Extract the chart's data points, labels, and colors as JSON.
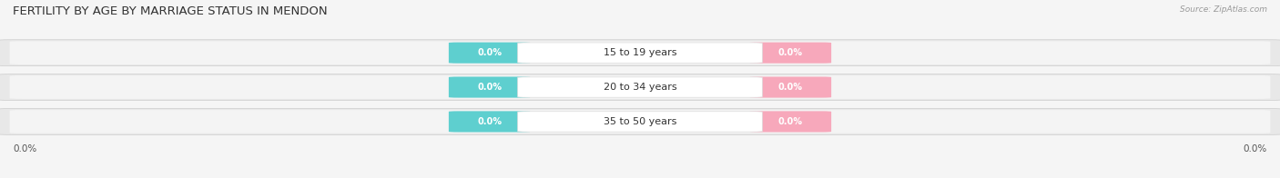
{
  "title": "Female Fertility by Age by Marriage Status in Mendon",
  "title_display": "FERTILITY BY AGE BY MARRIAGE STATUS IN MENDON",
  "source": "Source: ZipAtlas.com",
  "categories": [
    "15 to 19 years",
    "20 to 34 years",
    "35 to 50 years"
  ],
  "married_values": [
    0.0,
    0.0,
    0.0
  ],
  "unmarried_values": [
    0.0,
    0.0,
    0.0
  ],
  "married_color": "#5ecfcf",
  "unmarried_color": "#f7a8bb",
  "row_bg_color": "#e8e8e8",
  "row_inner_color": "#f4f4f4",
  "bg_color": "#f5f5f5",
  "bar_height": 0.62,
  "title_fontsize": 9.5,
  "label_fontsize": 7.5,
  "badge_fontsize": 7.0,
  "cat_fontsize": 8.0,
  "source_fontsize": 6.5
}
